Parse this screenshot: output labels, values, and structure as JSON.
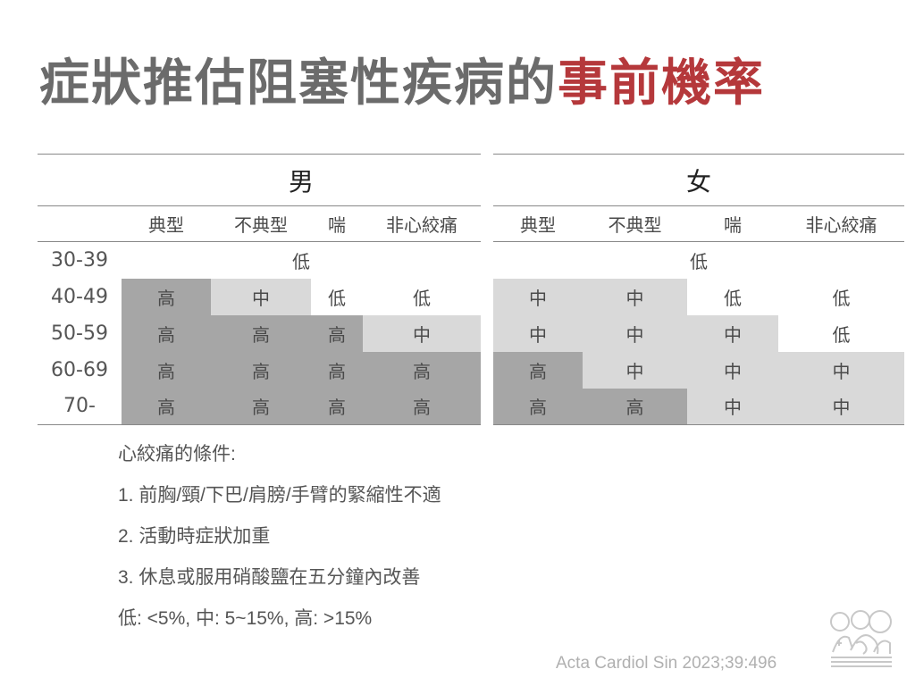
{
  "title": {
    "main": "症狀推估阻塞性疾病的",
    "highlight": "事前機率"
  },
  "colors": {
    "title_gray": "#6b6b6b",
    "title_red": "#b5383b",
    "high_fill": "#a6a6a6",
    "mid_fill": "#d9d9d9"
  },
  "table": {
    "male": {
      "header": "男",
      "columns": [
        "典型",
        "不典型",
        "喘",
        "非心絞痛"
      ],
      "rows": [
        {
          "age": "30-39",
          "cells": [
            "低"
          ],
          "levels": [
            "lo"
          ],
          "merged": true
        },
        {
          "age": "40-49",
          "cells": [
            "高",
            "中",
            "低",
            "低"
          ],
          "levels": [
            "hi",
            "mid",
            "lo",
            "lo"
          ]
        },
        {
          "age": "50-59",
          "cells": [
            "高",
            "高",
            "高",
            "中"
          ],
          "levels": [
            "hi",
            "hi",
            "hi",
            "mid"
          ]
        },
        {
          "age": "60-69",
          "cells": [
            "高",
            "高",
            "高",
            "高"
          ],
          "levels": [
            "hi",
            "hi",
            "hi",
            "hi"
          ]
        },
        {
          "age": "70-",
          "cells": [
            "高",
            "高",
            "高",
            "高"
          ],
          "levels": [
            "hi",
            "hi",
            "hi",
            "hi"
          ]
        }
      ]
    },
    "female": {
      "header": "女",
      "columns": [
        "典型",
        "不典型",
        "喘",
        "非心絞痛"
      ],
      "rows": [
        {
          "cells": [
            "低"
          ],
          "levels": [
            "lo"
          ],
          "merged": true
        },
        {
          "cells": [
            "中",
            "中",
            "低",
            "低"
          ],
          "levels": [
            "mid",
            "mid",
            "lo",
            "lo"
          ]
        },
        {
          "cells": [
            "中",
            "中",
            "中",
            "低"
          ],
          "levels": [
            "mid",
            "mid",
            "mid",
            "lo"
          ]
        },
        {
          "cells": [
            "高",
            "中",
            "中",
            "中"
          ],
          "levels": [
            "hi",
            "mid",
            "mid",
            "mid"
          ]
        },
        {
          "cells": [
            "高",
            "高",
            "中",
            "中"
          ],
          "levels": [
            "hi",
            "hi",
            "mid",
            "mid"
          ]
        }
      ]
    }
  },
  "notes": {
    "heading": "心絞痛的條件:",
    "items": [
      "1. 前胸/頸/下巴/肩膀/手臂的緊縮性不適",
      "2. 活動時症狀加重",
      "3. 休息或服用硝酸鹽在五分鐘內改善"
    ],
    "legend": "低: <5%, 中: 5~15%, 高: >15%"
  },
  "citation": "Acta Cardiol Sin 2023;39:496",
  "logo": {
    "icon": "medical-society-logo-icon"
  }
}
